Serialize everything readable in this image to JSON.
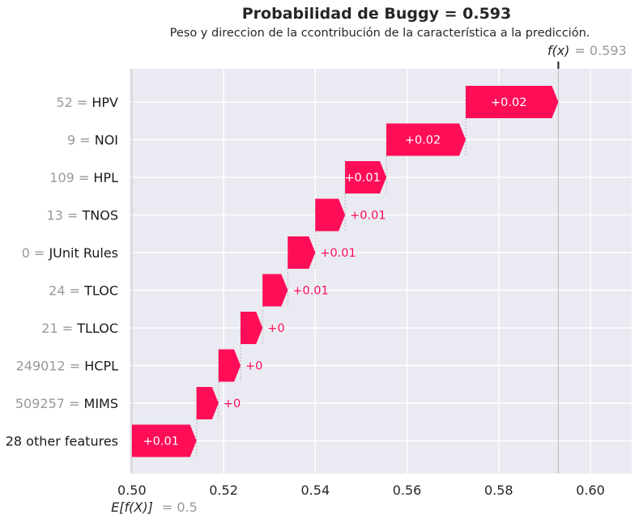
{
  "chart_data": {
    "type": "waterfall",
    "title": "Probabilidad de Buggy = 0.593",
    "subtitle": "Peso y direccion de la ccontribución de la característica a la predicción.",
    "base_value": 0.5,
    "base_label": "E[f(X)]",
    "base_value_text": "= 0.5",
    "output_value": 0.593,
    "output_label": "f(x)",
    "output_value_text": "= 0.593",
    "xlim": [
      0.4995,
      0.609
    ],
    "x_ticks": [
      0.5,
      0.52,
      0.54,
      0.56,
      0.58,
      0.6
    ],
    "x_tick_labels": [
      "0.50",
      "0.52",
      "0.54",
      "0.56",
      "0.58",
      "0.60"
    ],
    "features": [
      {
        "value": "52",
        "name": "HPV",
        "start": 0.5728,
        "end": 0.593,
        "label": "+0.02"
      },
      {
        "value": "9",
        "name": "NOI",
        "start": 0.5555,
        "end": 0.5728,
        "label": "+0.02"
      },
      {
        "value": "109",
        "name": "HPL",
        "start": 0.5465,
        "end": 0.5555,
        "label": "+0.01"
      },
      {
        "value": "13",
        "name": "TNOS",
        "start": 0.54,
        "end": 0.5465,
        "label": "+0.01"
      },
      {
        "value": "0",
        "name": "JUnit Rules",
        "start": 0.534,
        "end": 0.54,
        "label": "+0.01"
      },
      {
        "value": "24",
        "name": "TLOC",
        "start": 0.5285,
        "end": 0.534,
        "label": "+0.01"
      },
      {
        "value": "21",
        "name": "TLLOC",
        "start": 0.5237,
        "end": 0.5285,
        "label": "+0"
      },
      {
        "value": "249012",
        "name": "HCPL",
        "start": 0.5189,
        "end": 0.5237,
        "label": "+0"
      },
      {
        "value": "509257",
        "name": "MIMS",
        "start": 0.5141,
        "end": 0.5189,
        "label": "+0"
      },
      {
        "value": "",
        "name": "28 other features",
        "start": 0.5,
        "end": 0.5141,
        "label": "+0.01"
      }
    ]
  },
  "colors": {
    "positive": "#ff0d57",
    "background": "#eaeaf2",
    "grid": "#ffffff",
    "muted_text": "#999999"
  }
}
